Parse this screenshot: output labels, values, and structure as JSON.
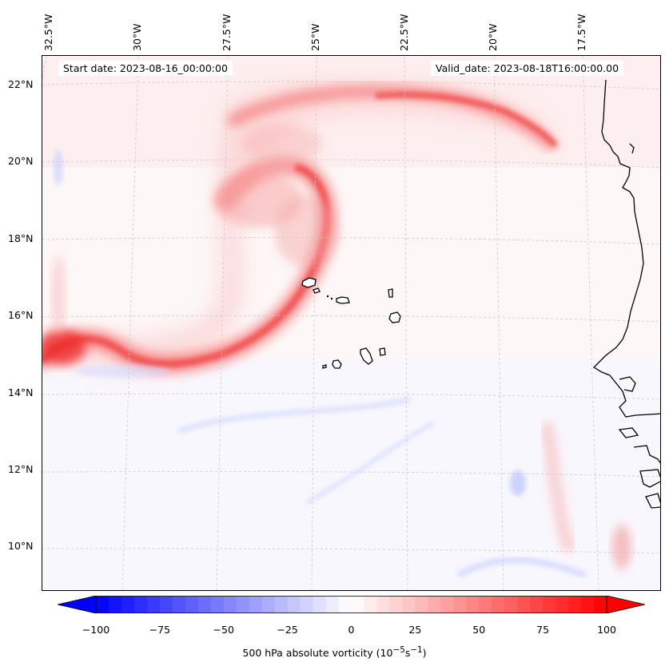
{
  "map": {
    "start_date": "Start date: 2023-08-16_00:00:00",
    "valid_date": "Valid_date: 2023-08-18T16:00:00.00",
    "lat_labels": [
      "22°N",
      "20°N",
      "18°N",
      "16°N",
      "14°N",
      "12°N",
      "10°N"
    ],
    "lon_labels": [
      "32.5°W",
      "30°W",
      "27.5°W",
      "25°W",
      "22.5°W",
      "20°W",
      "17.5°W"
    ],
    "field": "500 hPa absolute vorticity",
    "vorticity_band": {
      "color": "#f03a3a",
      "peak_value": 75
    },
    "coastline_color": "#000000"
  },
  "colorbar": {
    "label_text": "500 hPa absolute vorticity (10",
    "label_exp1": "−5",
    "label_mid": "s",
    "label_exp2": "−1",
    "label_close": ")",
    "min": -100,
    "max": 100,
    "tick_labels": [
      "−100",
      "−75",
      "−50",
      "−25",
      "0",
      "25",
      "50",
      "75",
      "100"
    ],
    "cmap_low": "#0000ff",
    "cmap_mid": "#ffffff",
    "cmap_high": "#ff0000"
  }
}
